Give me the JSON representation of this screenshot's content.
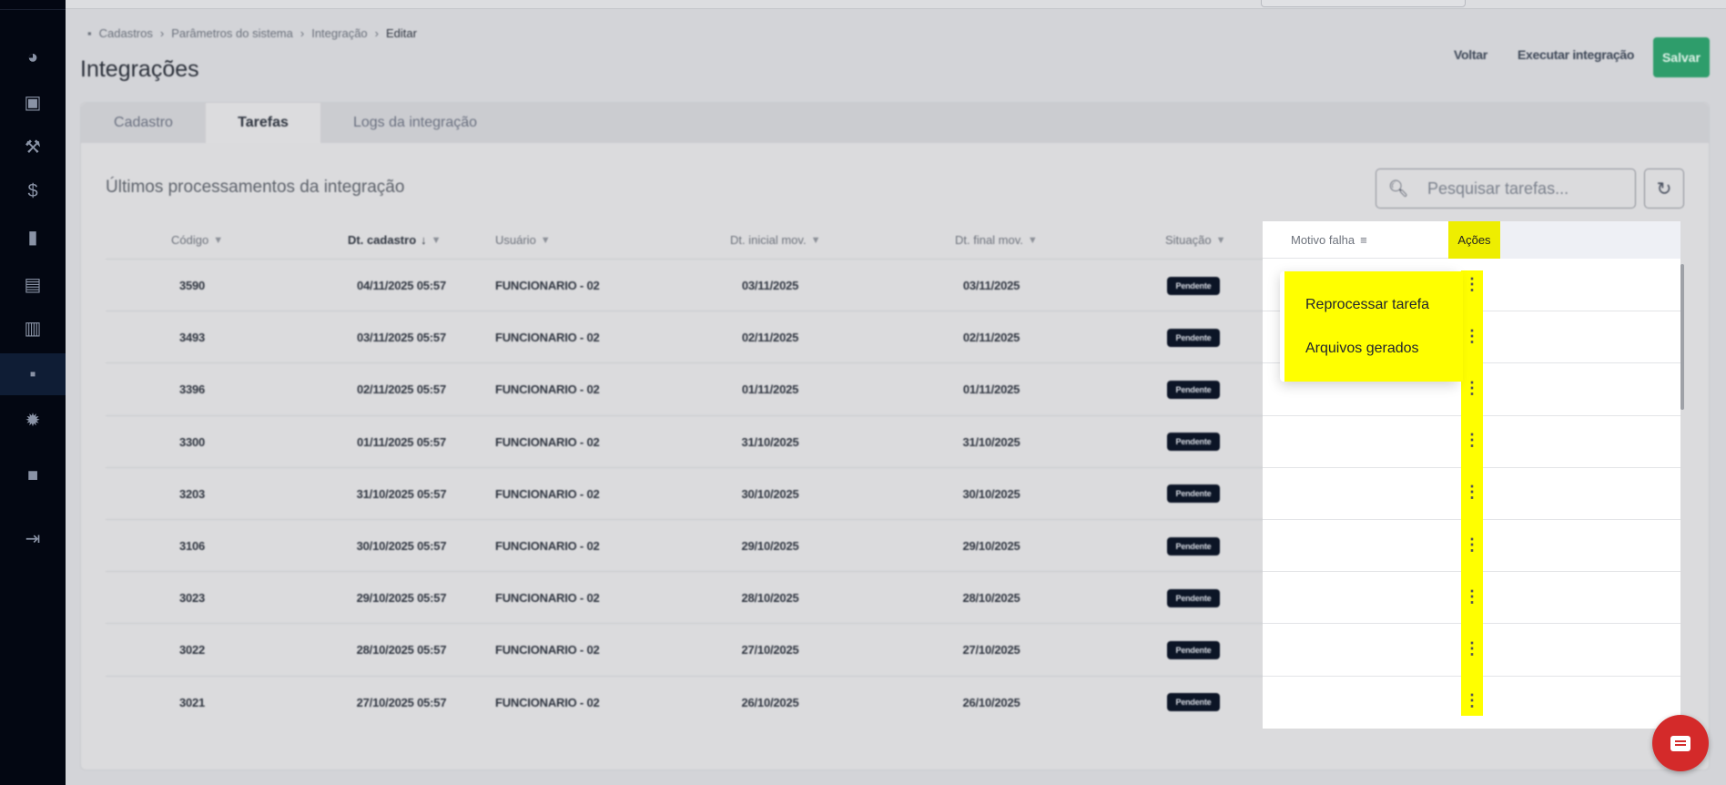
{
  "breadcrumb": [
    "Cadastros",
    "Parâmetros do sistema",
    "Integração",
    "Editar"
  ],
  "header": {
    "title": "Integrações",
    "back": "Voltar",
    "run": "Executar integração",
    "save": "Salvar"
  },
  "tabs": [
    "Cadastro",
    "Tarefas",
    "Logs da integração"
  ],
  "active_tab": "Tarefas",
  "section_title": "Últimos processamentos da integração",
  "search": {
    "placeholder": "Pesquisar tarefas..."
  },
  "columns": [
    "Código",
    "Dt. cadastro",
    "Usuário",
    "Dt. inicial mov.",
    "Dt. final mov.",
    "Situação",
    "Motivo falha",
    "Ações"
  ],
  "rows": [
    [
      "3590",
      "04/11/2025 05:57",
      "FUNCIONARIO - 02",
      "03/11/2025",
      "03/11/2025",
      "Pendente"
    ],
    [
      "3493",
      "03/11/2025 05:57",
      "FUNCIONARIO - 02",
      "02/11/2025",
      "02/11/2025",
      "Pendente"
    ],
    [
      "3396",
      "02/11/2025 05:57",
      "FUNCIONARIO - 02",
      "01/11/2025",
      "01/11/2025",
      "Pendente"
    ],
    [
      "3300",
      "01/11/2025 05:57",
      "FUNCIONARIO - 02",
      "31/10/2025",
      "31/10/2025",
      "Pendente"
    ],
    [
      "3203",
      "31/10/2025 05:57",
      "FUNCIONARIO - 02",
      "30/10/2025",
      "30/10/2025",
      "Pendente"
    ],
    [
      "3106",
      "30/10/2025 05:57",
      "FUNCIONARIO - 02",
      "29/10/2025",
      "29/10/2025",
      "Pendente"
    ],
    [
      "3023",
      "29/10/2025 05:57",
      "FUNCIONARIO - 02",
      "28/10/2025",
      "28/10/2025",
      "Pendente"
    ],
    [
      "3022",
      "28/10/2025 05:57",
      "FUNCIONARIO - 02",
      "27/10/2025",
      "27/10/2025",
      "Pendente"
    ],
    [
      "3021",
      "27/10/2025 05:57",
      "FUNCIONARIO - 02",
      "26/10/2025",
      "26/10/2025",
      "Pendente"
    ]
  ],
  "menu": [
    "Reprocessar tarefa",
    "Arquivos gerados"
  ],
  "sidebar_icons": [
    "dashboard-icon",
    "save-icon",
    "inventory-icon",
    "finance-icon",
    "reports-icon",
    "clipboard-icon",
    "documents-icon",
    "registrations-icon",
    "settings-icon",
    "support-icon",
    "logout-icon"
  ],
  "colors": {
    "save": "#2e9d6b",
    "highlight": "#ffff00",
    "chat": "#d42a2a",
    "badge": "#0c1526"
  }
}
